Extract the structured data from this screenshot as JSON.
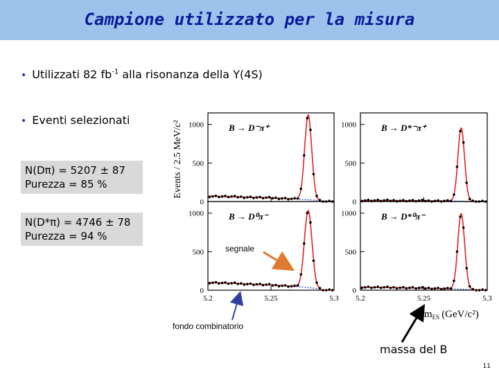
{
  "slide": {
    "title": "Campione utilizzato per la misura",
    "bullet1": {
      "pre": "Utilizzati 82 fb",
      "sup": "-1",
      "post": " alla risonanza della Υ(4S)"
    },
    "bullet2": "Eventi selezionati",
    "box1": {
      "line1": "N(Dπ) = 5207 ± 87",
      "line2": "Purezza = 85 %"
    },
    "box2": {
      "line1": "N(D*π) = 4746 ± 78",
      "line2": "Purezza = 94 %"
    },
    "annotation_signal": "segnale",
    "annotation_background": "fondo combinatorio",
    "annotation_mass": "massa del B",
    "page_number": "11",
    "colors": {
      "title_bar": "#9dc3ec",
      "title_text": "#0a1a9a",
      "box": "#d9d9d9",
      "arrow_signal": "#e07a30",
      "arrow_bg": "#3040a0",
      "fit_curve": "#e02020",
      "bg_curve": "#2040c0"
    }
  },
  "plot": {
    "ylabel": "Events / 2.5 MeV/c²",
    "xlabel_main": "m",
    "xlabel_sub": "ES",
    "xlabel_units": "(GeV/c²)",
    "y_ticks": [
      "0",
      "500",
      "1000"
    ],
    "x_ticks": [
      "5.2",
      "5.25",
      "5.3"
    ],
    "panel_labels": [
      "B → D⁻π⁺",
      "B → D*⁻π⁺",
      "B → D⁰π⁻",
      "B → D*⁰π⁻"
    ]
  },
  "chart_data": [
    {
      "type": "scatter",
      "title": "B → D⁻π⁺",
      "xlim": [
        5.2,
        5.3
      ],
      "ylim": [
        0,
        1150
      ],
      "peak": 1100,
      "bg": 70,
      "width": 0.0028
    },
    {
      "type": "scatter",
      "title": "B → D*⁻π⁺",
      "xlim": [
        5.2,
        5.3
      ],
      "ylim": [
        0,
        1150
      ],
      "peak": 950,
      "bg": 15,
      "width": 0.0026
    },
    {
      "type": "scatter",
      "title": "B → D⁰π⁻",
      "xlim": [
        5.2,
        5.3
      ],
      "ylim": [
        0,
        1150
      ],
      "peak": 1000,
      "bg": 100,
      "width": 0.003
    },
    {
      "type": "scatter",
      "title": "B → D*⁰π⁻",
      "xlim": [
        5.2,
        5.3
      ],
      "ylim": [
        0,
        1150
      ],
      "peak": 980,
      "bg": 40,
      "width": 0.0027
    }
  ]
}
